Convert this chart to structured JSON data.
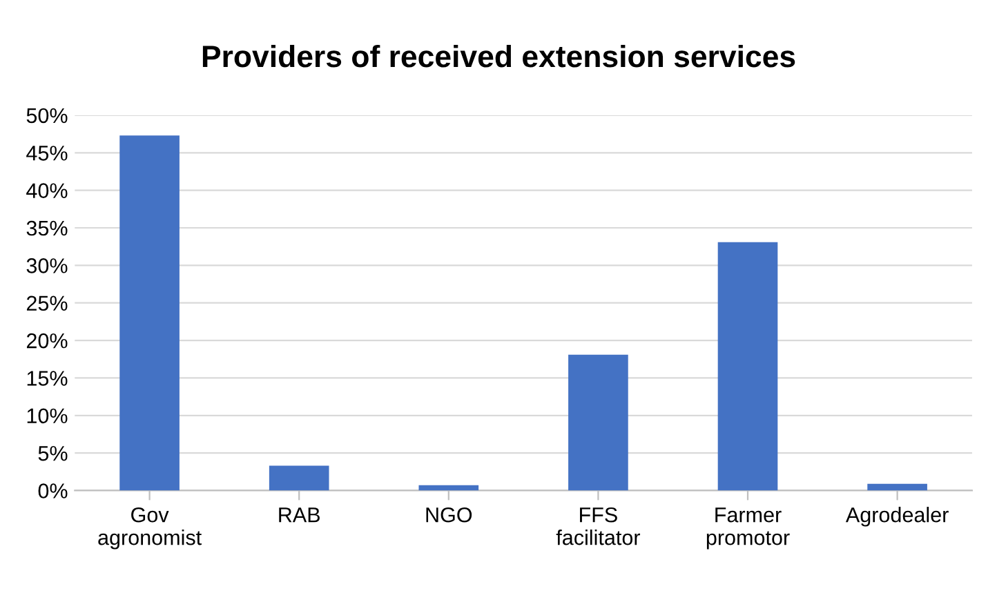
{
  "chart_data": {
    "type": "bar",
    "title": "Providers of received extension services",
    "categories": [
      "Gov\nagronomist",
      "RAB",
      "NGO",
      "FFS\nfacilitator",
      "Farmer\npromotor",
      "Agrodealer"
    ],
    "values": [
      47.3,
      3.3,
      0.7,
      18.1,
      33.1,
      0.9
    ],
    "color": "#4472c4",
    "ylim": [
      0,
      50
    ],
    "yticks": [
      {
        "value": 0,
        "label": "0%"
      },
      {
        "value": 5,
        "label": "5%"
      },
      {
        "value": 10,
        "label": "10%"
      },
      {
        "value": 15,
        "label": "15%"
      },
      {
        "value": 20,
        "label": "20%"
      },
      {
        "value": 25,
        "label": "25%"
      },
      {
        "value": 30,
        "label": "30%"
      },
      {
        "value": 35,
        "label": "35%"
      },
      {
        "value": 40,
        "label": "40%"
      },
      {
        "value": 45,
        "label": "45%"
      },
      {
        "value": 50,
        "label": "50%"
      }
    ],
    "grid": "y"
  }
}
